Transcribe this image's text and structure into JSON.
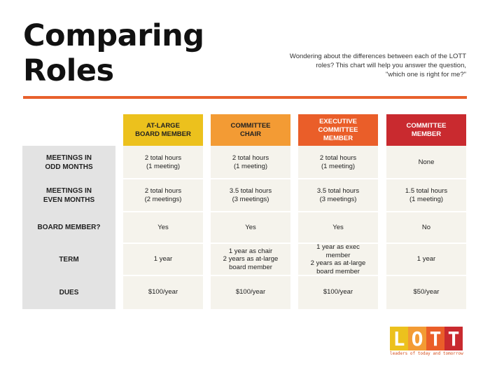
{
  "title": {
    "line1": "Comparing",
    "line2": "Roles"
  },
  "intro": {
    "line1": "Wondering about the differences between each of the LOTT",
    "line2": "roles? This chart will help you answer the question,",
    "line3": "\"which one is right for me?\""
  },
  "colors": {
    "accent_rule": "#e8602c",
    "col1": "#ecc11d",
    "col2": "#f39b34",
    "col3": "#ea5e29",
    "col4": "#c92a2f"
  },
  "columns": [
    {
      "lines": [
        "AT-LARGE",
        "BOARD MEMBER"
      ]
    },
    {
      "lines": [
        "COMMITTEE",
        "CHAIR"
      ]
    },
    {
      "lines": [
        "EXECUTIVE",
        "COMMITTEE",
        "MEMBER"
      ]
    },
    {
      "lines": [
        "COMMITTEE",
        "MEMBER"
      ]
    }
  ],
  "rows": [
    {
      "label": [
        "MEETINGS IN",
        "ODD MONTHS"
      ]
    },
    {
      "label": [
        "MEETINGS IN",
        "EVEN MONTHS"
      ]
    },
    {
      "label": [
        "BOARD MEMBER?"
      ]
    },
    {
      "label": [
        "TERM"
      ]
    },
    {
      "label": [
        "DUES"
      ]
    }
  ],
  "cells": [
    [
      [
        "2 total hours",
        "(1 meeting)"
      ],
      [
        "2 total hours",
        "(1 meeting)"
      ],
      [
        "2 total hours",
        "(1 meeting)"
      ],
      [
        "None"
      ]
    ],
    [
      [
        "2 total hours",
        "(2 meetings)"
      ],
      [
        "3.5 total hours",
        "(3 meetings)"
      ],
      [
        "3.5 total hours",
        "(3 meetings)"
      ],
      [
        "1.5 total hours",
        "(1 meeting)"
      ]
    ],
    [
      [
        "Yes"
      ],
      [
        "Yes"
      ],
      [
        "Yes"
      ],
      [
        "No"
      ]
    ],
    [
      [
        "1 year"
      ],
      [
        "1 year as chair",
        "2 years as at-large",
        "board member"
      ],
      [
        "1 year as exec",
        "member",
        "2 years as at-large",
        "board member"
      ],
      [
        "1 year"
      ]
    ],
    [
      [
        "$100/year"
      ],
      [
        "$100/year"
      ],
      [
        "$100/year"
      ],
      [
        "$50/year"
      ]
    ]
  ],
  "logo": {
    "letters": [
      "L",
      "O",
      "T",
      "T"
    ],
    "letter_colors": [
      "#ecc11d",
      "#f39b34",
      "#ea5e29",
      "#c92a2f"
    ],
    "tagline": "leaders of today and tomorrow"
  }
}
